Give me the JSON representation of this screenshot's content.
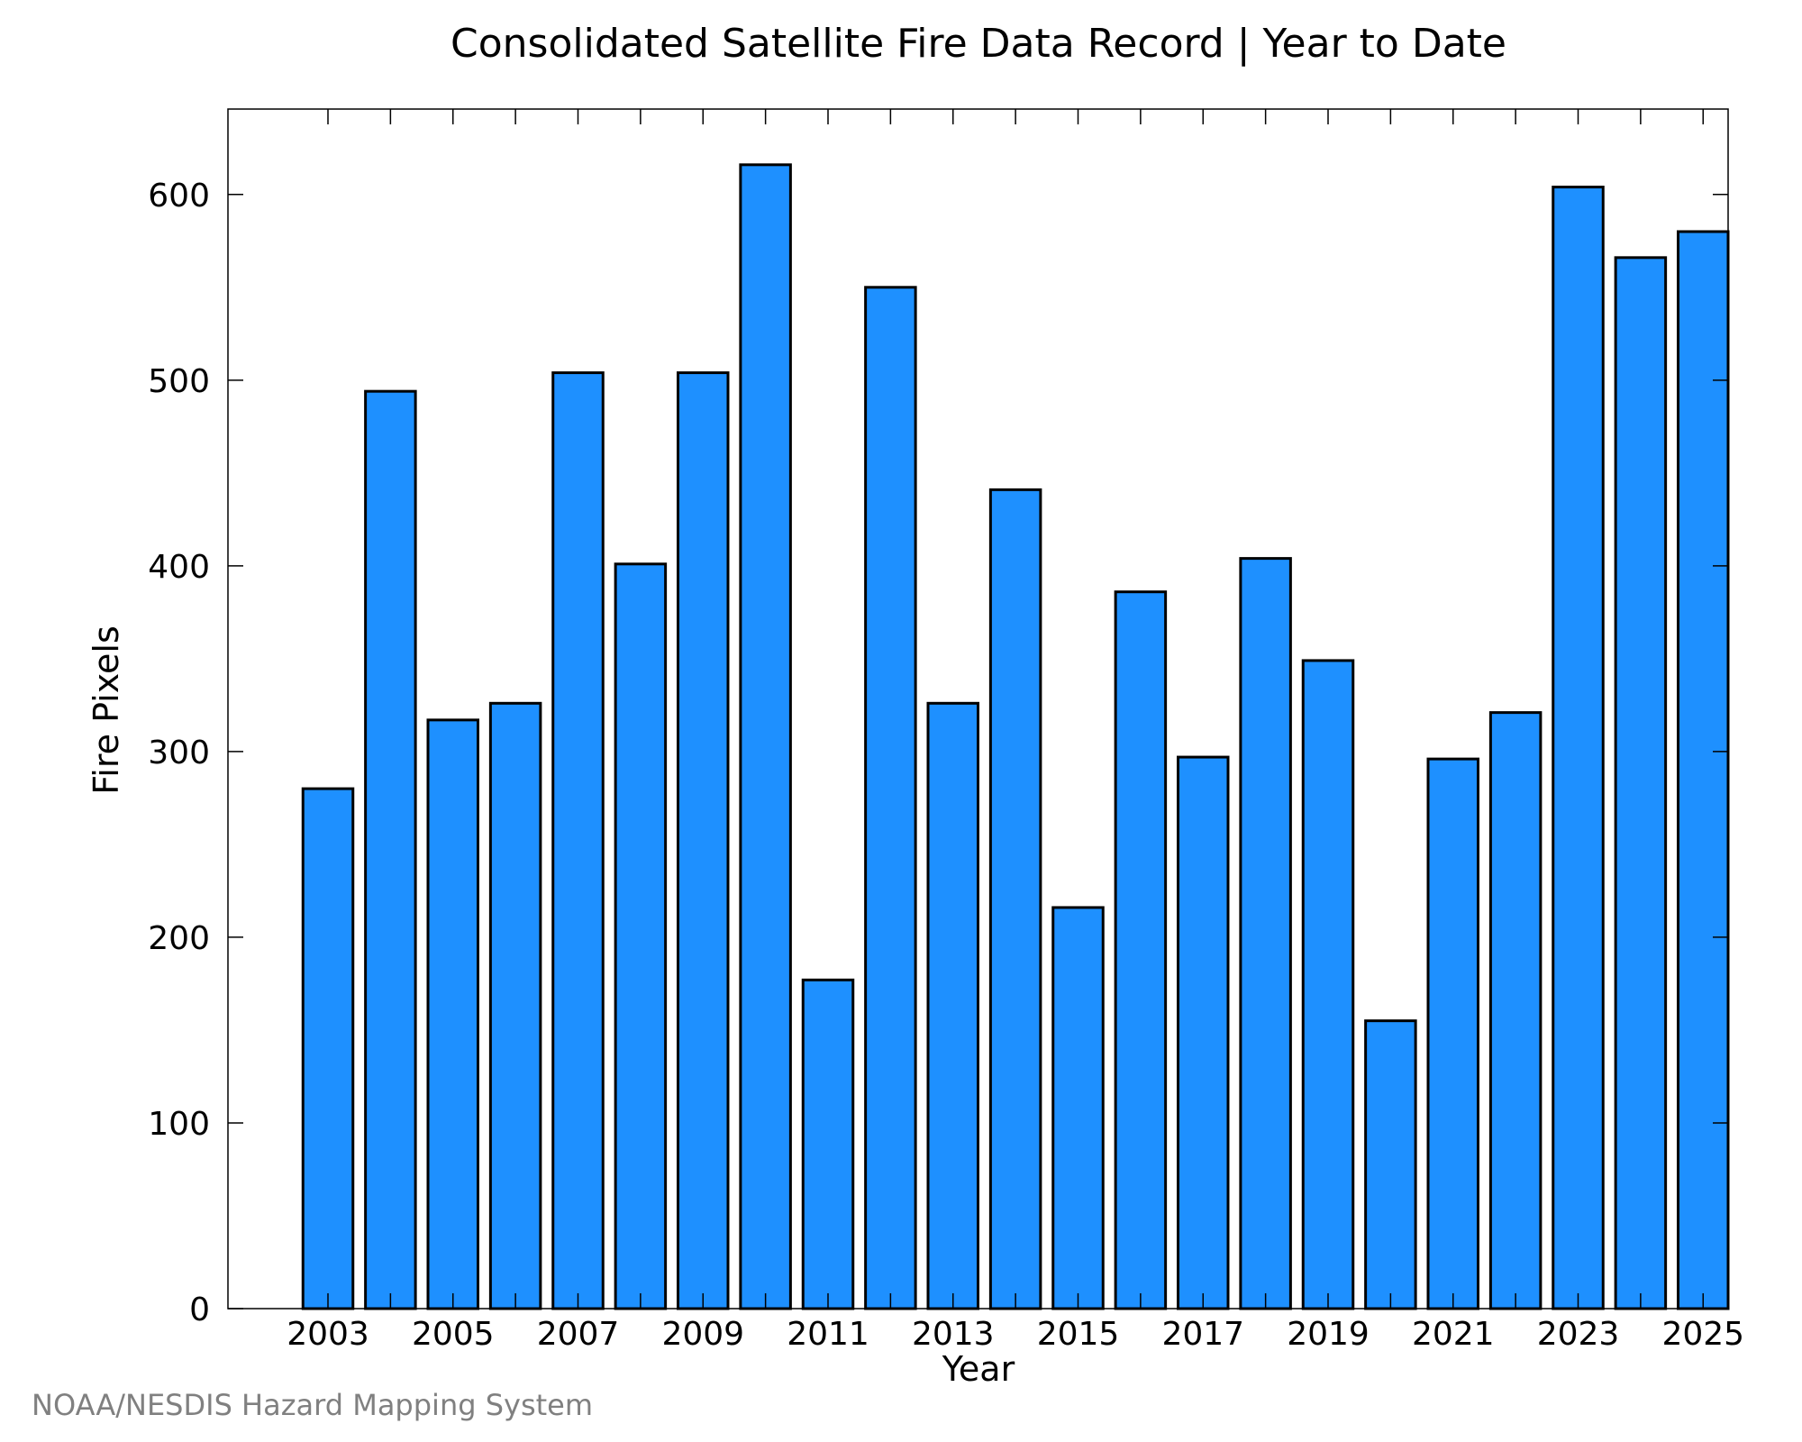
{
  "source_credit": "NOAA/NESDIS Hazard Mapping System",
  "colors": {
    "bar_fill": "#1E90FF",
    "bar_stroke": "#000000",
    "axis": "#000000",
    "credit_text": "#808080"
  },
  "chart_data": {
    "type": "bar",
    "title": "Consolidated Satellite Fire Data Record | Year to Date",
    "xlabel": "Year",
    "ylabel": "Fire Pixels",
    "categories": [
      2003,
      2004,
      2005,
      2006,
      2007,
      2008,
      2009,
      2010,
      2011,
      2012,
      2013,
      2014,
      2015,
      2016,
      2017,
      2018,
      2019,
      2020,
      2021,
      2022,
      2023,
      2024,
      2025
    ],
    "values": [
      280,
      494,
      317,
      326,
      504,
      401,
      504,
      616,
      177,
      550,
      326,
      441,
      216,
      386,
      297,
      404,
      349,
      155,
      296,
      321,
      604,
      566,
      580
    ],
    "ylim": [
      0,
      646
    ],
    "xlim": [
      2001.4,
      2025.4
    ],
    "yticks": [
      0,
      100,
      200,
      300,
      400,
      500,
      600
    ],
    "xticks": [
      2003,
      2005,
      2007,
      2009,
      2011,
      2013,
      2015,
      2017,
      2019,
      2021,
      2023,
      2025
    ],
    "grid": false,
    "legend": "none"
  }
}
